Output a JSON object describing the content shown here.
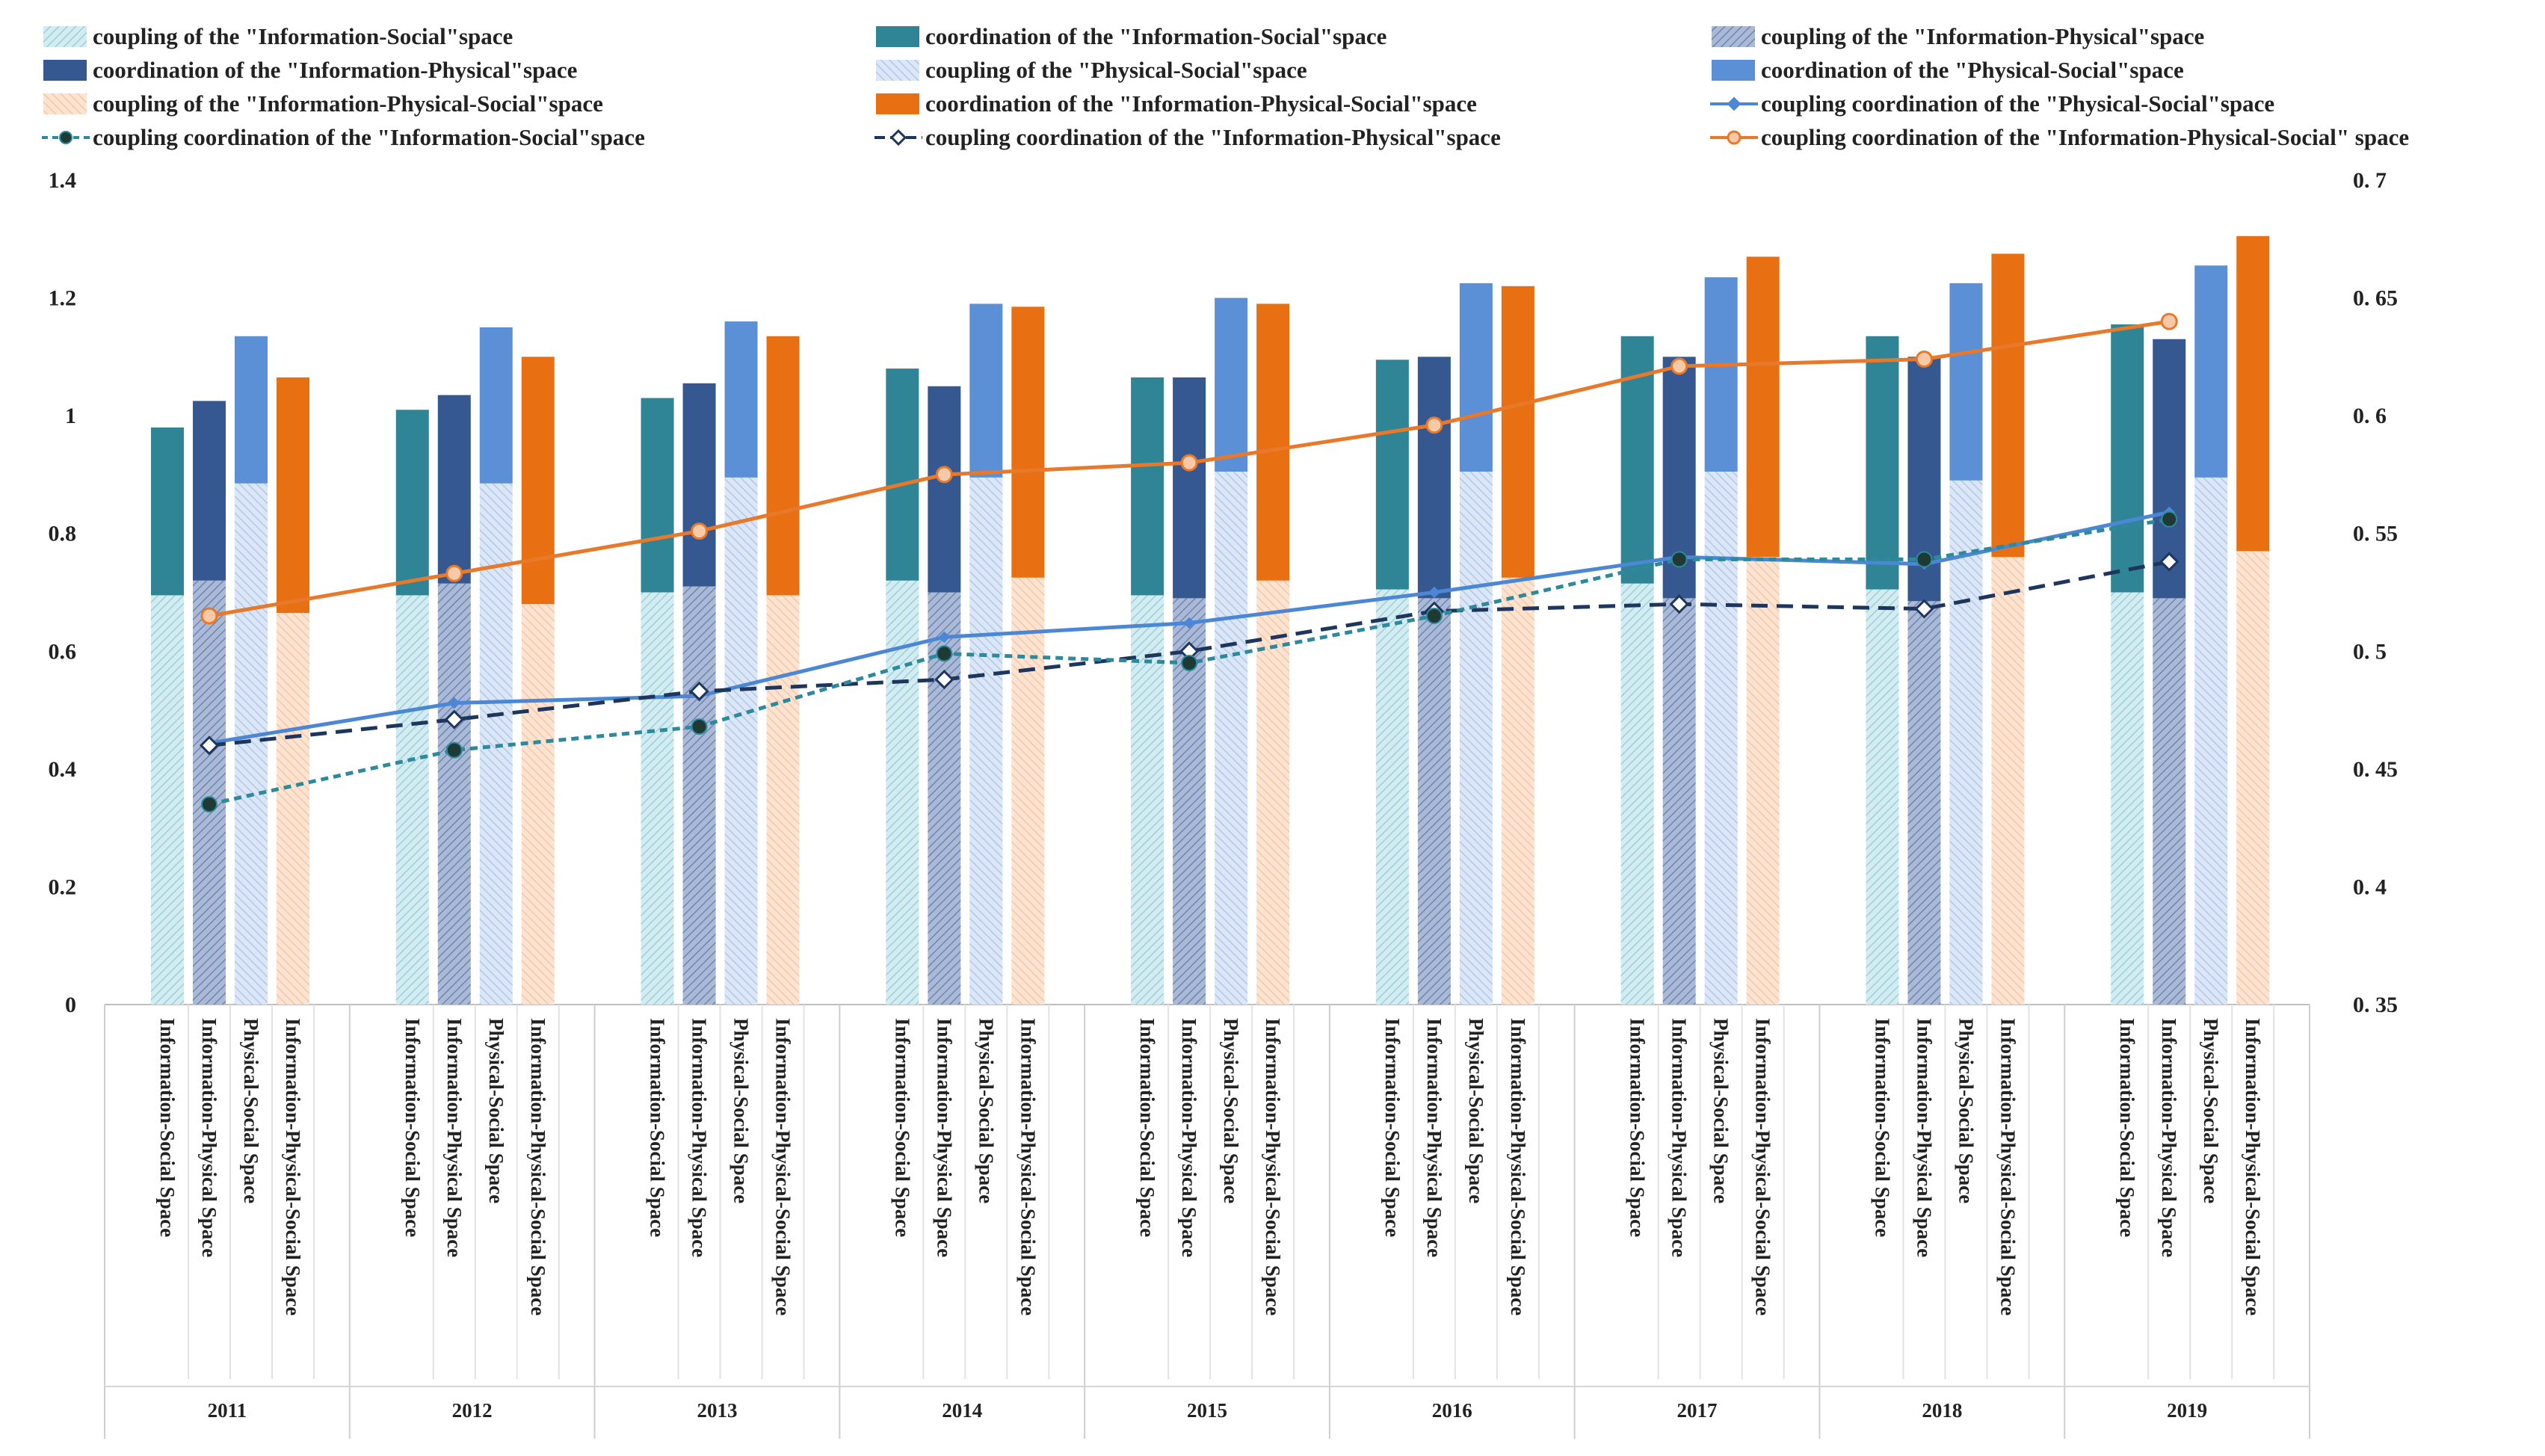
{
  "chart_data": {
    "type": "bar+line",
    "years": [
      "2011",
      "2012",
      "2013",
      "2014",
      "2015",
      "2016",
      "2017",
      "2018",
      "2019"
    ],
    "categories": [
      "Information-Social Space",
      "Information-Physical Space",
      "Physical-Social Space",
      "Information-Physical-Social Space"
    ],
    "left_axis": {
      "min": 0,
      "max": 1.4,
      "ticks": [
        "0",
        "0.2",
        "0.4",
        "0.6",
        "0.8",
        "1",
        "1.2",
        "1.4"
      ]
    },
    "right_axis": {
      "min": 0.35,
      "max": 0.7,
      "ticks": [
        "0. 35",
        "0. 4",
        "0. 45",
        "0. 5",
        "0. 55",
        "0. 6",
        "0. 65",
        "0. 7"
      ]
    },
    "colors": {
      "is_coupling": "#bfe3ea",
      "is_coord": "#2f8496",
      "ip_coupling": "#8fa4c8",
      "ip_coord": "#34588f",
      "ps_coupling": "#c6d7f0",
      "ps_coord": "#5b8fd6",
      "ips_coupling": "#fbd7bd",
      "ips_coord": "#e86f12",
      "line_is": "#2c8a9c",
      "line_ip": "#1e365e",
      "line_ps": "#4c87d6",
      "line_ips": "#e8782a",
      "marker_dark": "#1f3a34"
    },
    "legend": [
      {
        "key": "is_coupling",
        "label": "coupling of the \"Information-Social\"space"
      },
      {
        "key": "is_coord",
        "label": "coordination of the \"Information-Social\"space"
      },
      {
        "key": "ip_coupling",
        "label": "coupling of the \"Information-Physical\"space"
      },
      {
        "key": "ip_coord",
        "label": "coordination of the \"Information-Physical\"space"
      },
      {
        "key": "ps_coupling",
        "label": "coupling of the \"Physical-Social\"space"
      },
      {
        "key": "ps_coord",
        "label": "coordination of the \"Physical-Social\"space"
      },
      {
        "key": "ips_coupling",
        "label": "coupling of the \"Information-Physical-Social\"space"
      },
      {
        "key": "ips_coord",
        "label": "coordination of the \"Information-Physical-Social\"space"
      },
      {
        "key": "line_ps",
        "label": "coupling coordination of the \"Physical-Social\"space"
      },
      {
        "key": "line_is",
        "label": "coupling coordination of the \"Information-Social\"space"
      },
      {
        "key": "line_ip",
        "label": "coupling coordination of the \"Information-Physical\"space"
      },
      {
        "key": "line_ips",
        "label": "coupling coordination of the \"Information-Physical-Social\" space"
      }
    ],
    "coupling": {
      "Information-Social Space": [
        0.695,
        0.695,
        0.7,
        0.72,
        0.695,
        0.705,
        0.715,
        0.705,
        0.7
      ],
      "Information-Physical Space": [
        0.72,
        0.715,
        0.71,
        0.7,
        0.69,
        0.69,
        0.69,
        0.685,
        0.69
      ],
      "Physical-Social Space": [
        0.885,
        0.885,
        0.895,
        0.895,
        0.905,
        0.905,
        0.905,
        0.89,
        0.895
      ],
      "Information-Physical-Social Space": [
        0.665,
        0.68,
        0.695,
        0.725,
        0.72,
        0.725,
        0.76,
        0.76,
        0.77
      ]
    },
    "coordination": {
      "Information-Social Space": [
        0.98,
        1.01,
        1.03,
        1.08,
        1.065,
        1.095,
        1.135,
        1.135,
        1.155
      ],
      "Information-Physical Space": [
        1.025,
        1.035,
        1.055,
        1.05,
        1.065,
        1.1,
        1.1,
        1.1,
        1.13
      ],
      "Physical-Social Space": [
        1.135,
        1.15,
        1.16,
        1.19,
        1.2,
        1.225,
        1.235,
        1.225,
        1.255
      ],
      "Information-Physical-Social Space": [
        1.065,
        1.1,
        1.135,
        1.185,
        1.19,
        1.22,
        1.27,
        1.275,
        1.305
      ]
    },
    "coupling_coordination": {
      "Information-Social Space": [
        0.435,
        0.458,
        0.468,
        0.499,
        0.495,
        0.515,
        0.539,
        0.539,
        0.556
      ],
      "Information-Physical Space": [
        0.46,
        0.471,
        0.483,
        0.488,
        0.5,
        0.517,
        0.52,
        0.518,
        0.538
      ],
      "Physical-Social Space": [
        0.461,
        0.478,
        0.481,
        0.506,
        0.512,
        0.525,
        0.54,
        0.537,
        0.559
      ],
      "Information-Physical-Social Space": [
        0.515,
        0.533,
        0.551,
        0.575,
        0.58,
        0.596,
        0.621,
        0.624,
        0.64
      ]
    }
  }
}
